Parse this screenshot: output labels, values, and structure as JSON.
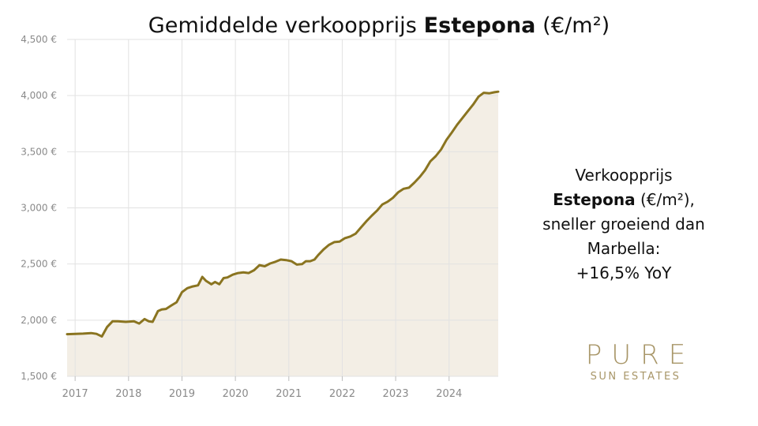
{
  "title": {
    "prefix": "Gemiddelde verkoopprijs ",
    "bold": "Estepona",
    "suffix": " (€/m²)"
  },
  "side_note": {
    "line1": "Verkoopprijs",
    "bold": "Estepona",
    "line2_rest": " (€/m²),",
    "line3": "sneller groeiend dan",
    "line4": "Marbella:",
    "line5": "+16,5% YoY"
  },
  "logo": {
    "main": "PURE",
    "sub": "SUN ESTATES"
  },
  "colors": {
    "line": "#8a7420",
    "fill": "#f3eee5",
    "grid": "#e2e2e2",
    "tick_text": "#8a8a8a"
  },
  "chart_data": {
    "type": "area",
    "title": "Gemiddelde verkoopprijs Estepona (€/m²)",
    "xlabel": "",
    "ylabel": "",
    "ylim": [
      1500,
      4500
    ],
    "xlim": [
      2016.85,
      2024.92
    ],
    "grid": true,
    "legend": "none",
    "yticks": [
      1500,
      2000,
      2500,
      3000,
      3500,
      4000,
      4500
    ],
    "ytick_labels": [
      "1,500 €",
      "2,000 €",
      "2,500 €",
      "3,000 €",
      "3,500 €",
      "4,000 €",
      "4,500 €"
    ],
    "xticks": [
      2017,
      2018,
      2019,
      2020,
      2021,
      2022,
      2023,
      2024
    ],
    "xtick_labels": [
      "2017",
      "2018",
      "2019",
      "2020",
      "2021",
      "2022",
      "2023",
      "2024"
    ],
    "series": [
      {
        "x": [
          2016.85,
          2017.0,
          2017.15,
          2017.3,
          2017.4,
          2017.5,
          2017.6,
          2017.7,
          2017.8,
          2017.95,
          2018.1,
          2018.2,
          2018.3,
          2018.38,
          2018.45,
          2018.55,
          2018.62,
          2018.7,
          2018.8,
          2018.9,
          2019.0,
          2019.1,
          2019.2,
          2019.3,
          2019.38,
          2019.45,
          2019.55,
          2019.62,
          2019.7,
          2019.78,
          2019.85,
          2019.95,
          2020.05,
          2020.15,
          2020.25,
          2020.35,
          2020.45,
          2020.55,
          2020.65,
          2020.75,
          2020.85,
          2020.95,
          2021.05,
          2021.15,
          2021.25,
          2021.32,
          2021.4,
          2021.48,
          2021.55,
          2021.65,
          2021.75,
          2021.85,
          2021.95,
          2022.05,
          2022.15,
          2022.25,
          2022.35,
          2022.45,
          2022.55,
          2022.65,
          2022.75,
          2022.85,
          2022.95,
          2023.05,
          2023.15,
          2023.25,
          2023.35,
          2023.45,
          2023.55,
          2023.65,
          2023.75,
          2023.85,
          2023.95,
          2024.05,
          2024.15,
          2024.25,
          2024.35,
          2024.45,
          2024.55,
          2024.65,
          2024.75,
          2024.85,
          2024.92
        ],
        "values": [
          1875,
          1878,
          1880,
          1885,
          1878,
          1855,
          1940,
          1990,
          1990,
          1985,
          1990,
          1970,
          2010,
          1990,
          1985,
          2080,
          2095,
          2100,
          2130,
          2160,
          2250,
          2285,
          2300,
          2310,
          2385,
          2350,
          2320,
          2340,
          2320,
          2375,
          2380,
          2405,
          2420,
          2425,
          2420,
          2445,
          2490,
          2480,
          2505,
          2520,
          2540,
          2535,
          2525,
          2495,
          2500,
          2525,
          2525,
          2540,
          2580,
          2630,
          2670,
          2695,
          2700,
          2730,
          2745,
          2770,
          2825,
          2880,
          2930,
          2975,
          3030,
          3055,
          3090,
          3140,
          3170,
          3180,
          3225,
          3275,
          3335,
          3415,
          3460,
          3520,
          3605,
          3670,
          3740,
          3800,
          3860,
          3920,
          3990,
          4025,
          4020,
          4030,
          4035
        ]
      }
    ]
  }
}
